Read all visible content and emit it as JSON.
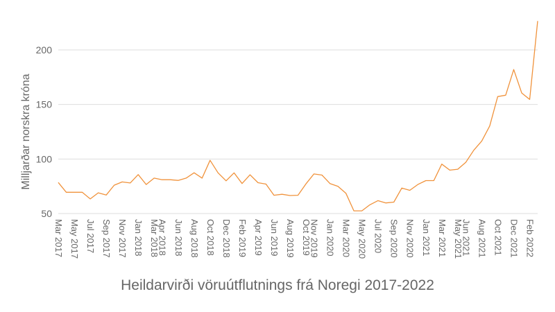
{
  "chart_data": {
    "type": "line",
    "title": "Heildarvirði vöruútflutnings frá Noregi 2017-2022",
    "xlabel": "",
    "ylabel": "Milljarðar norskra króna",
    "ylim": [
      50,
      226
    ],
    "yticks": [
      50,
      100,
      150,
      200
    ],
    "grid": true,
    "legend": null,
    "line_color": "#f0923b",
    "x": [
      "Mar 2017",
      "Apr 2017",
      "May 2017",
      "Jun 2017",
      "Jul 2017",
      "Aug 2017",
      "Sep 2017",
      "Oct 2017",
      "Nov 2017",
      "Dec 2017",
      "Jan 2018",
      "Feb 2018",
      "Mar 2018",
      "Apr 2018",
      "May 2018",
      "Jun 2018",
      "Jul 2018",
      "Aug 2018",
      "Sep 2018",
      "Oct 2018",
      "Nov 2018",
      "Dec 2018",
      "Jan 2019",
      "Feb 2019",
      "Mar 2019",
      "Apr 2019",
      "May 2019",
      "Jun 2019",
      "Jul 2019",
      "Aug 2019",
      "Sep 2019",
      "Oct 2019",
      "Nov 2019",
      "Dec 2019",
      "Jan 2020",
      "Feb 2020",
      "Mar 2020",
      "Apr 2020",
      "May 2020",
      "Jun 2020",
      "Jul 2020",
      "Aug 2020",
      "Sep 2020",
      "Oct 2020",
      "Nov 2020",
      "Dec 2020",
      "Jan 2021",
      "Feb 2021",
      "Mar 2021",
      "Apr 2021",
      "May 2021",
      "Jun 2021",
      "Jul 2021",
      "Aug 2021",
      "Sep 2021",
      "Oct 2021",
      "Nov 2021",
      "Dec 2021",
      "Jan 2022",
      "Feb 2022",
      "Mar 2022"
    ],
    "series": [
      {
        "name": "Heildarvirði vöruútflutnings",
        "values": [
          78.5,
          69.5,
          69.5,
          69.5,
          63.4,
          69,
          67,
          76,
          79,
          78,
          85.7,
          76.6,
          82.5,
          81,
          81,
          80.4,
          82.5,
          87.4,
          82.5,
          98.8,
          87.3,
          80,
          87.3,
          77.5,
          85.5,
          78.3,
          77,
          66.8,
          67.7,
          66.5,
          66.8,
          77.2,
          86.3,
          85.3,
          77.5,
          75,
          68.6,
          52.5,
          52.5,
          58,
          61.8,
          59.7,
          60.5,
          73.4,
          71.3,
          76.6,
          80.2,
          80.2,
          95.3,
          89.8,
          90.6,
          97,
          108,
          116.5,
          130.3,
          157.2,
          158.5,
          182,
          160.5,
          154.6,
          226.5
        ]
      }
    ],
    "x_tick_labels": [
      {
        "label": "Mar 2017",
        "index": 0
      },
      {
        "label": "May 2017",
        "index": 2
      },
      {
        "label": "Jul 2017",
        "index": 4
      },
      {
        "label": "Sep 2017",
        "index": 6
      },
      {
        "label": "Nov 2017",
        "index": 8
      },
      {
        "label": "Jan 2018",
        "index": 10
      },
      {
        "label": "Mar 2018",
        "index": 12
      },
      {
        "label": "Apr 2018",
        "index": 13
      },
      {
        "label": "Jun 2018",
        "index": 15
      },
      {
        "label": "Aug 2018",
        "index": 17
      },
      {
        "label": "Oct 2018",
        "index": 19
      },
      {
        "label": "Dec 2018",
        "index": 21
      },
      {
        "label": "Feb 2019",
        "index": 23
      },
      {
        "label": "Apr 2019",
        "index": 25
      },
      {
        "label": "Jun 2019",
        "index": 27
      },
      {
        "label": "Aug 2019",
        "index": 29
      },
      {
        "label": "Oct 2019",
        "index": 31
      },
      {
        "label": "Nov 2019",
        "index": 32
      },
      {
        "label": "Jan 2020",
        "index": 34
      },
      {
        "label": "Mar 2020",
        "index": 36
      },
      {
        "label": "May 2020",
        "index": 38
      },
      {
        "label": "Jul 2020",
        "index": 40
      },
      {
        "label": "Sep 2020",
        "index": 42
      },
      {
        "label": "Nov 2020",
        "index": 44
      },
      {
        "label": "Jan 2021",
        "index": 46
      },
      {
        "label": "Mar 2021",
        "index": 48
      },
      {
        "label": "May 2021",
        "index": 50
      },
      {
        "label": "Jun 2021",
        "index": 51
      },
      {
        "label": "Aug 2021",
        "index": 53
      },
      {
        "label": "Oct 2021",
        "index": 55
      },
      {
        "label": "Dec 2021",
        "index": 57
      },
      {
        "label": "Feb 2022",
        "index": 59
      }
    ]
  }
}
